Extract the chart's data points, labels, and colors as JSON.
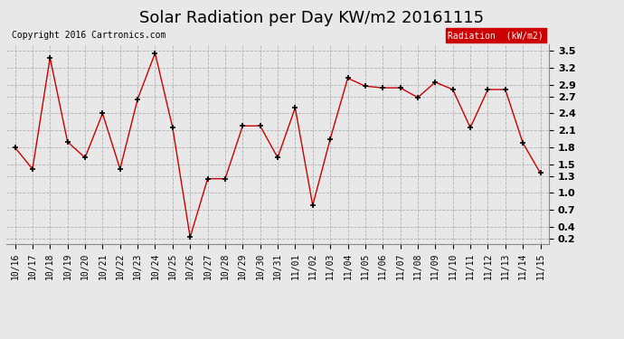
{
  "title": "Solar Radiation per Day KW/m2 20161115",
  "copyright": "Copyright 2016 Cartronics.com",
  "legend_label": "Radiation  (kW/m2)",
  "x_labels": [
    "10/16",
    "10/17",
    "10/18",
    "10/19",
    "10/20",
    "10/21",
    "10/22",
    "10/23",
    "10/24",
    "10/25",
    "10/26",
    "10/27",
    "10/28",
    "10/29",
    "10/30",
    "10/31",
    "11/01",
    "11/02",
    "11/03",
    "11/04",
    "11/05",
    "11/06",
    "11/07",
    "11/08",
    "11/09",
    "11/10",
    "11/11",
    "11/12",
    "11/13",
    "11/14",
    "11/15"
  ],
  "y_values": [
    1.8,
    1.42,
    3.38,
    1.9,
    1.62,
    2.4,
    1.42,
    2.65,
    3.46,
    2.15,
    0.22,
    1.25,
    1.25,
    2.18,
    2.18,
    1.62,
    2.5,
    0.78,
    1.95,
    3.02,
    2.88,
    2.85,
    2.85,
    2.68,
    2.95,
    2.82,
    2.15,
    2.82,
    2.82,
    1.88,
    1.35
  ],
  "line_color": "#cc0000",
  "marker_color": "black",
  "marker": "+",
  "ylim_min": 0.1,
  "ylim_max": 3.62,
  "yticks": [
    0.2,
    0.4,
    0.7,
    1.0,
    1.3,
    1.5,
    1.8,
    2.1,
    2.4,
    2.7,
    2.9,
    3.2,
    3.5
  ],
  "background_color": "#e8e8e8",
  "plot_bg_color": "#e8e8e8",
  "grid_color": "#aaaaaa",
  "legend_bg": "#cc0000",
  "legend_text_color": "white",
  "title_fontsize": 13,
  "tick_fontsize": 7,
  "copyright_fontsize": 7,
  "legend_fontsize": 7
}
